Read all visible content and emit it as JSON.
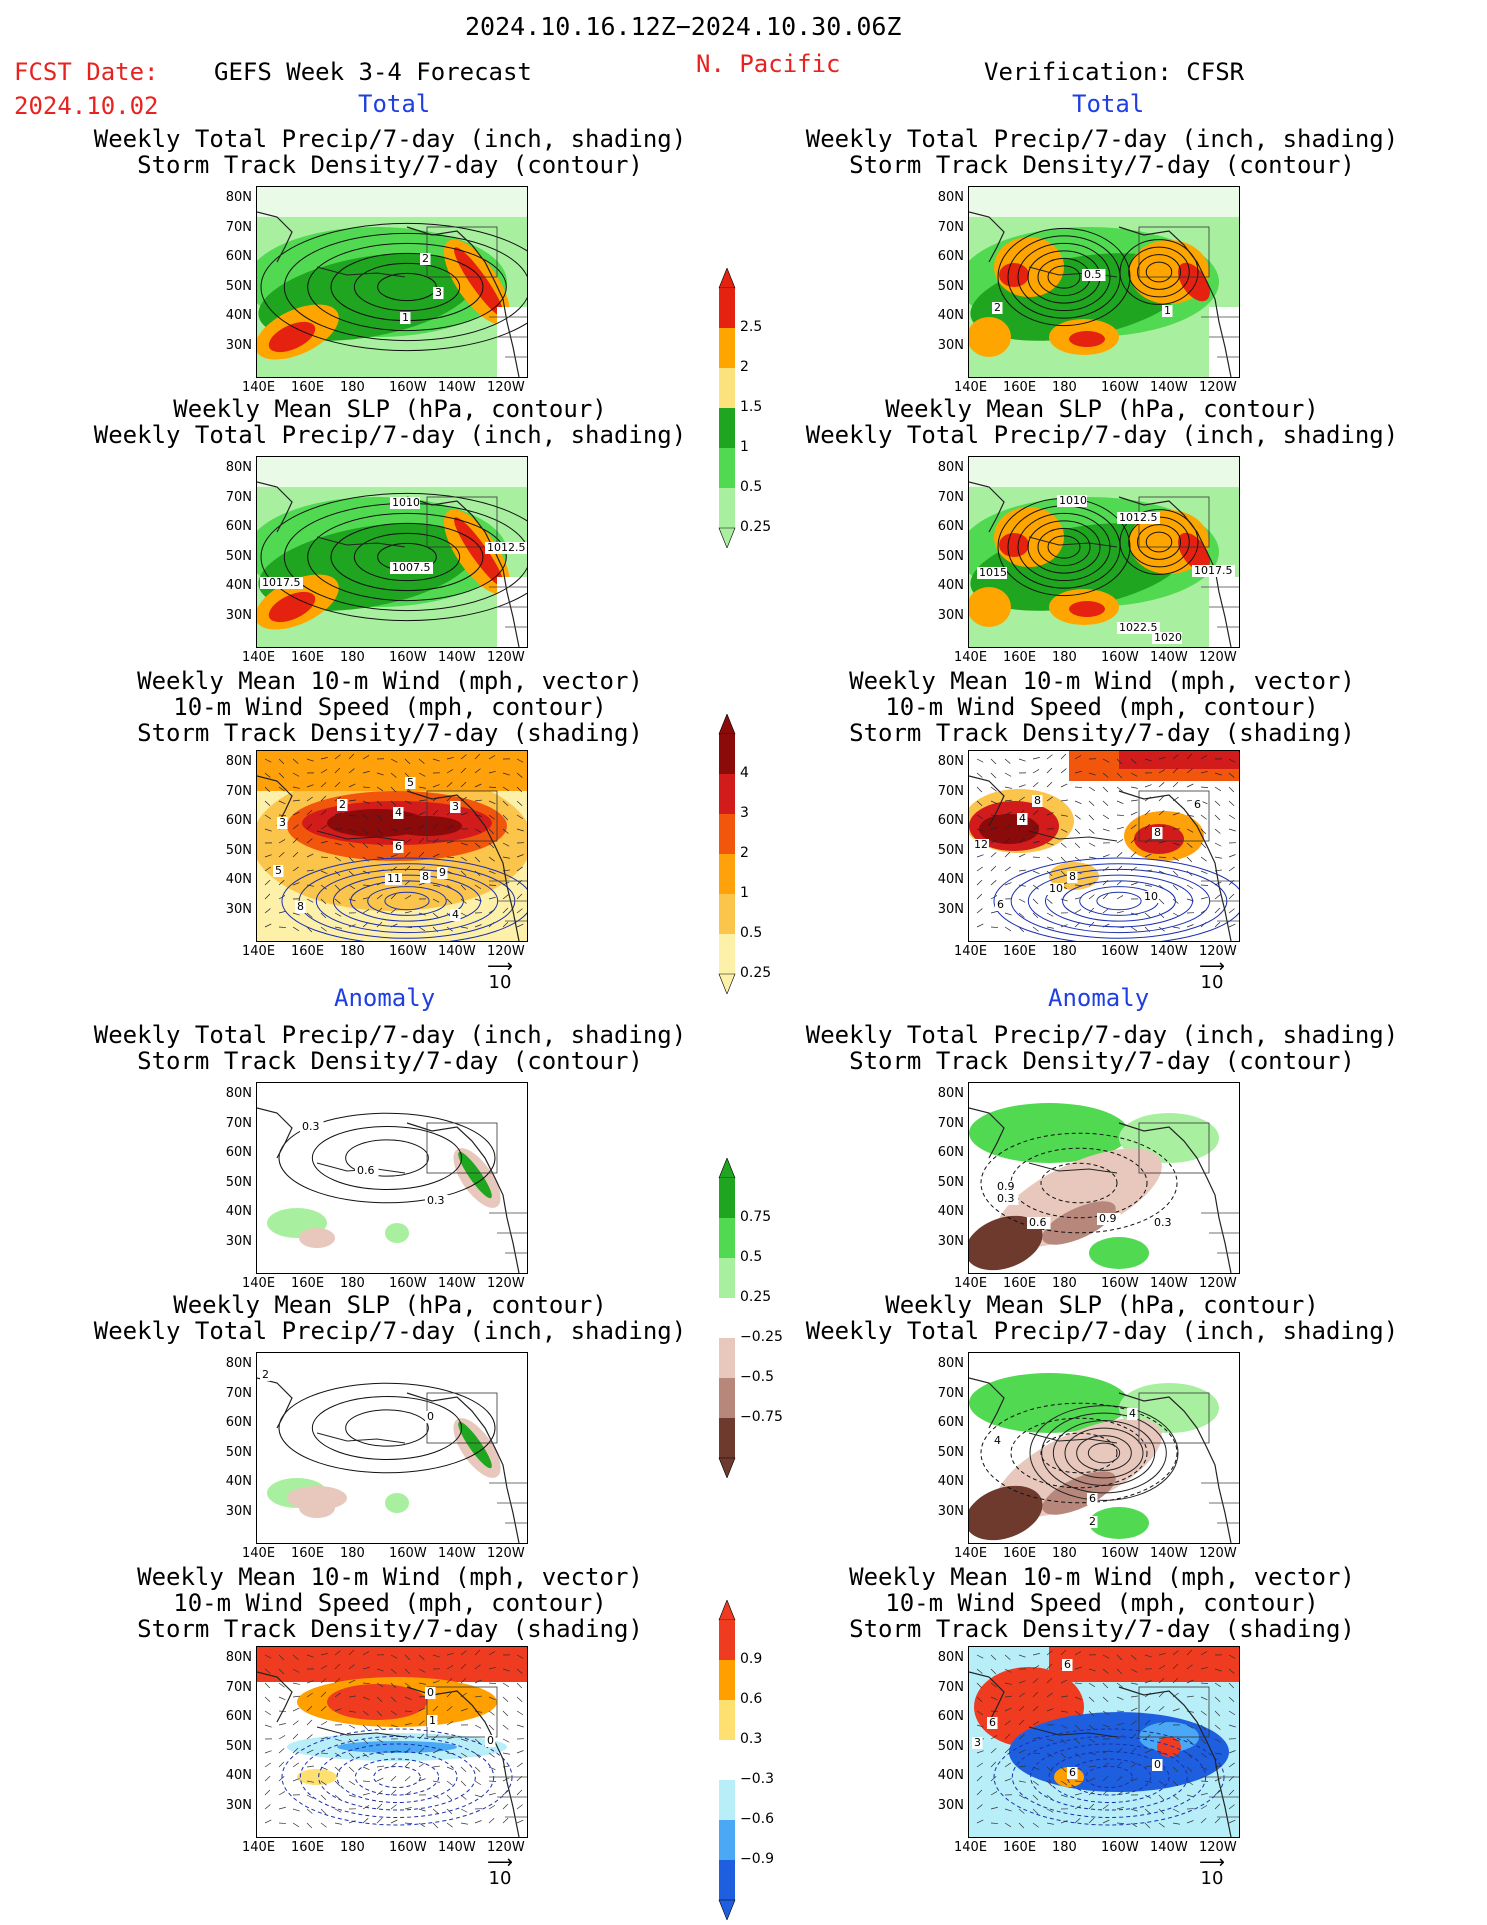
{
  "header": {
    "period": "2024.10.16.12Z−2024.10.30.06Z",
    "fcst_label": "FCST Date:",
    "fcst_date": "2024.10.02",
    "product": "GEFS Week 3-4 Forecast",
    "region": "N. Pacific",
    "verification": "Verification: CFSR"
  },
  "sections": {
    "total": "Total",
    "anomaly": "Anomaly"
  },
  "titles": {
    "precip_track": [
      "Weekly Total Precip/7-day (inch, shading)",
      "Storm Track Density/7-day (contour)"
    ],
    "slp_precip": [
      "Weekly Mean SLP (hPa, contour)",
      "Weekly Total Precip/7-day (inch, shading)"
    ],
    "wind": [
      "Weekly Mean 10-m Wind (mph, vector)",
      "10-m Wind Speed (mph, contour)",
      "Storm Track Density/7-day (shading)"
    ]
  },
  "axes": {
    "lat": [
      "80N",
      "70N",
      "60N",
      "50N",
      "40N",
      "30N"
    ],
    "lon": [
      "140E",
      "160E",
      "180",
      "160W",
      "140W",
      "120W"
    ]
  },
  "vector_ref": "10",
  "colorbars": {
    "precip_total": {
      "labels": [
        "2.5",
        "2",
        "1.5",
        "1",
        "0.5",
        "0.25"
      ],
      "colors": [
        "#e4220f",
        "#ffa500",
        "#fbe27c",
        "#1fa51f",
        "#52d952",
        "#a8f0a0"
      ]
    },
    "track_total": {
      "labels": [
        "4",
        "3",
        "2",
        "1",
        "0.5",
        "0.25"
      ],
      "colors": [
        "#8b0a0a",
        "#d21c1c",
        "#f2560c",
        "#ffa10a",
        "#fbc44a",
        "#fdf0a8"
      ]
    },
    "precip_anom": {
      "labels": [
        "0.75",
        "0.5",
        "0.25",
        "−0.25",
        "−0.5",
        "−0.75"
      ],
      "colors": [
        "#1fa51f",
        "#52d952",
        "#a8f0a0",
        "#ffffff",
        "#e8c8bc",
        "#b8877c",
        "#6e3a2e"
      ]
    },
    "wind_anom": {
      "labels": [
        "0.9",
        "0.6",
        "0.3",
        "−0.3",
        "−0.6",
        "−0.9"
      ],
      "colors": [
        "#ef3b1f",
        "#ffa000",
        "#fde070",
        "#ffffff",
        "#b8eef8",
        "#4aa8f5",
        "#1e5fe0"
      ]
    }
  },
  "contour_labels": {
    "p1l": [
      "2",
      "3",
      "1"
    ],
    "p1r": [
      "0.5",
      "2",
      "1"
    ],
    "p2l": [
      "1010",
      "1012.5",
      "1007.5",
      "1017.5"
    ],
    "p2r": [
      "1010",
      "1012.5",
      "1015",
      "1017.5",
      "1022.5",
      "1020"
    ],
    "p3l": [
      "5",
      "2",
      "4",
      "3",
      "3",
      "6",
      "5",
      "11",
      "8",
      "9",
      "8",
      "4"
    ],
    "p3r": [
      "8",
      "6",
      "4",
      "8",
      "12",
      "8",
      "10",
      "10",
      "6"
    ],
    "p4l": [
      "0.3",
      "0.6",
      "0.3"
    ],
    "p4r": [
      "0.9",
      "0.3",
      "0.6",
      "0.9",
      "0.3"
    ],
    "p5l": [
      "2",
      "0"
    ],
    "p5r": [
      "4",
      "4",
      "6",
      "2"
    ],
    "p6l": [
      "0",
      "1",
      "0"
    ],
    "p6r": [
      "6",
      "6",
      "3",
      "0",
      "6"
    ]
  }
}
